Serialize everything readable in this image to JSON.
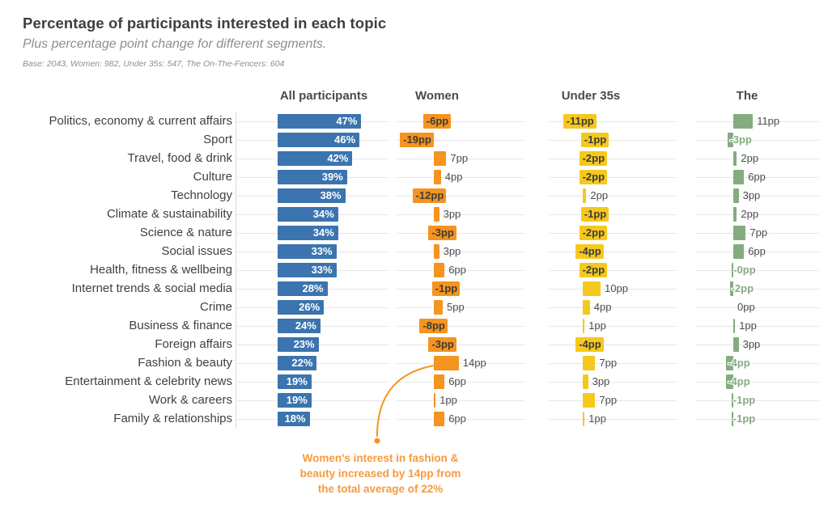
{
  "header": {
    "title": "Percentage of participants interested in each topic",
    "subtitle": "Plus percentage point change for different segments.",
    "base_note": "Base: 2043, Women: 982, Under 35s: 547, The On-The-Fencers: 604"
  },
  "chart_data": {
    "type": "bar",
    "orientation": "horizontal",
    "facets": [
      {
        "id": "all",
        "label": "All participants",
        "color": "#3B74AE",
        "value_suffix": "%"
      },
      {
        "id": "women",
        "label": "Women",
        "color": "#F5941F",
        "value_suffix": "pp"
      },
      {
        "id": "under35",
        "label": "Under 35s",
        "color": "#F5C91C",
        "value_suffix": "pp"
      },
      {
        "id": "fencers",
        "label": "The",
        "color": "#84AC7F",
        "value_suffix": "pp"
      }
    ],
    "categories": [
      "Politics, economy & current affairs",
      "Sport",
      "Travel, food & drink",
      "Culture",
      "Technology",
      "Climate & sustainability",
      "Science & nature",
      "Social issues",
      "Health, fitness & wellbeing",
      "Internet trends & social media",
      "Crime",
      "Business & finance",
      "Foreign affairs",
      "Fashion & beauty",
      "Entertainment & celebrity news",
      "Work & careers",
      "Family & relationships"
    ],
    "series": [
      {
        "name": "All participants",
        "values": [
          47,
          46,
          42,
          39,
          38,
          34,
          34,
          33,
          33,
          28,
          26,
          24,
          23,
          22,
          19,
          19,
          18
        ],
        "labels": [
          "47%",
          "46%",
          "42%",
          "39%",
          "38%",
          "34%",
          "34%",
          "33%",
          "33%",
          "28%",
          "26%",
          "24%",
          "23%",
          "22%",
          "19%",
          "19%",
          "18%"
        ]
      },
      {
        "name": "Women",
        "values": [
          -6,
          -19,
          7,
          4,
          -12,
          3,
          -3,
          3,
          6,
          -1,
          5,
          -8,
          -3,
          14,
          6,
          1,
          6
        ],
        "labels": [
          "-6pp",
          "-19pp",
          "7pp",
          "4pp",
          "-12pp",
          "3pp",
          "-3pp",
          "3pp",
          "6pp",
          "-1pp",
          "5pp",
          "-8pp",
          "-3pp",
          "14pp",
          "6pp",
          "1pp",
          "6pp"
        ]
      },
      {
        "name": "Under 35s",
        "values": [
          -11,
          -1,
          -2,
          -2,
          2,
          -1,
          -2,
          -4,
          -2,
          10,
          4,
          1,
          -4,
          7,
          3,
          7,
          1
        ],
        "labels": [
          "-11pp",
          "-1pp",
          "-2pp",
          "-2pp",
          "2pp",
          "-1pp",
          "-2pp",
          "-4pp",
          "-2pp",
          "10pp",
          "4pp",
          "1pp",
          "-4pp",
          "7pp",
          "3pp",
          "7pp",
          "1pp"
        ]
      },
      {
        "name": "The On-The-Fencers",
        "values": [
          11,
          -3,
          2,
          6,
          3,
          2,
          7,
          6,
          0,
          -2,
          0,
          1,
          3,
          -4,
          -4,
          -1,
          -1
        ],
        "labels": [
          "11pp",
          "-3pp",
          "2pp",
          "6pp",
          "3pp",
          "2pp",
          "7pp",
          "6pp",
          "-0pp",
          "-2pp",
          "0pp",
          "1pp",
          "3pp",
          "-4pp",
          "-4pp",
          "-1pp",
          "-1pp"
        ]
      }
    ],
    "annotation": {
      "text": "Women's interest in fashion & beauty increased by 14pp from the total average of 22%",
      "lines": [
        "Women's interest in fashion &",
        "beauty increased by 14pp from",
        "the total average of 22%"
      ],
      "text_color": "#F79A3B",
      "line_color": "#F5941F",
      "target": "Women / Fashion & beauty / 14pp"
    }
  }
}
